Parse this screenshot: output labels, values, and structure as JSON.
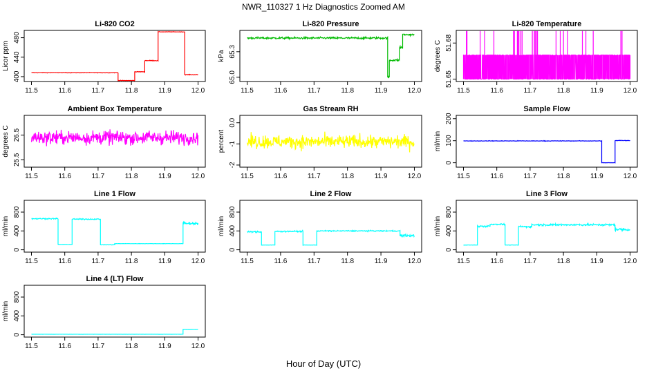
{
  "figure": {
    "title": "NWR_110327  1 Hz Diagnostics Zoomed AM",
    "xlabel": "Hour of Day (UTC)"
  },
  "chart_data": [
    {
      "type": "line",
      "title": "Li-820 CO2",
      "ylabel": "Licor ppm",
      "color": "#ff0000",
      "xlim": [
        11.5,
        12.0
      ],
      "ylim": [
        390,
        495
      ],
      "x_ticks": [
        "11.5",
        "11.6",
        "11.7",
        "11.8",
        "11.9",
        "12.0"
      ],
      "y_ticks": [
        "400",
        "440",
        "480"
      ],
      "segments": [
        [
          11.5,
          11.76,
          408,
          0.4
        ],
        [
          11.76,
          11.81,
          392,
          0.6
        ],
        [
          11.81,
          11.84,
          410,
          0.6
        ],
        [
          11.84,
          11.88,
          433,
          0.7
        ],
        [
          11.88,
          11.96,
          492,
          0.5
        ],
        [
          11.96,
          12.0,
          404,
          0.6
        ]
      ],
      "spikes": []
    },
    {
      "type": "line",
      "title": "Li-820 Pressure",
      "ylabel": "kPa",
      "color": "#00bb00",
      "xlim": [
        11.5,
        12.0
      ],
      "ylim": [
        64.95,
        65.55
      ],
      "x_ticks": [
        "11.5",
        "11.6",
        "11.7",
        "11.8",
        "11.9",
        "12.0"
      ],
      "y_ticks": [
        "65.0",
        "65.3"
      ],
      "segments": [
        [
          11.5,
          11.92,
          65.46,
          0.012
        ],
        [
          11.92,
          11.925,
          65.0,
          0.01
        ],
        [
          11.925,
          11.955,
          65.2,
          0.012
        ],
        [
          11.955,
          11.965,
          65.35,
          0.02
        ],
        [
          11.965,
          12.0,
          65.5,
          0.012
        ]
      ],
      "spikes": []
    },
    {
      "type": "line",
      "title": "Li-820 Temperature",
      "ylabel": "degrees C",
      "color": "#ff00ff",
      "xlim": [
        11.5,
        12.0
      ],
      "ylim": [
        51.648,
        51.6905
      ],
      "x_ticks": [
        "11.5",
        "11.6",
        "11.7",
        "11.8",
        "11.9",
        "12.0"
      ],
      "y_ticks": [
        "51.65",
        "51.68"
      ],
      "segments": [
        [
          11.5,
          12.0,
          51.66,
          0.0
        ]
      ],
      "pattern": "binary",
      "levels": [
        51.65,
        51.67
      ],
      "spike_level": 51.69
    },
    {
      "type": "line",
      "title": "Ambient Box Temperature",
      "ylabel": "degrees C",
      "color": "#ff00ff",
      "xlim": [
        11.5,
        12.0
      ],
      "ylim": [
        25.2,
        27.3
      ],
      "x_ticks": [
        "11.5",
        "11.6",
        "11.7",
        "11.8",
        "11.9",
        "12.0"
      ],
      "y_ticks": [
        "25.5",
        "26.5"
      ],
      "segments": [
        [
          11.5,
          12.0,
          26.4,
          0.28
        ]
      ],
      "spikes": []
    },
    {
      "type": "line",
      "title": "Gas Stream RH",
      "ylabel": "percent",
      "color": "#ffff00",
      "xlim": [
        11.5,
        12.0
      ],
      "ylim": [
        -2.1,
        0.35
      ],
      "x_ticks": [
        "11.5",
        "11.6",
        "11.7",
        "11.8",
        "11.9",
        "12.0"
      ],
      "y_ticks": [
        "-2",
        "-1",
        "0.0"
      ],
      "segments": [
        [
          11.5,
          12.0,
          -0.9,
          0.32
        ]
      ],
      "spikes": []
    },
    {
      "type": "line",
      "title": "Sample Flow",
      "ylabel": "ml/min",
      "color": "#0000ff",
      "xlim": [
        11.5,
        12.0
      ],
      "ylim": [
        -20,
        215
      ],
      "x_ticks": [
        "11.5",
        "11.6",
        "11.7",
        "11.8",
        "11.9",
        "12.0"
      ],
      "y_ticks": [
        "0",
        "100",
        "200"
      ],
      "segments": [
        [
          11.5,
          11.915,
          99,
          1.2
        ],
        [
          11.915,
          11.955,
          0,
          0.8
        ],
        [
          11.955,
          12.0,
          101,
          1.5
        ]
      ],
      "spikes": []
    },
    {
      "type": "line",
      "title": "Line 1 Flow",
      "ylabel": "ml/min",
      "color": "#00ffff",
      "xlim": [
        11.5,
        12.0
      ],
      "ylim": [
        -50,
        1050
      ],
      "x_ticks": [
        "11.5",
        "11.6",
        "11.7",
        "11.8",
        "11.9",
        "12.0"
      ],
      "y_ticks": [
        "0",
        "400",
        "800"
      ],
      "segments": [
        [
          11.5,
          11.58,
          660,
          12
        ],
        [
          11.58,
          11.622,
          110,
          3
        ],
        [
          11.622,
          11.707,
          650,
          12
        ],
        [
          11.707,
          11.75,
          105,
          3
        ],
        [
          11.75,
          11.955,
          130,
          3
        ],
        [
          11.955,
          12.0,
          560,
          30
        ]
      ],
      "spikes": []
    },
    {
      "type": "line",
      "title": "Line 2 Flow",
      "ylabel": "ml/min",
      "color": "#00ffff",
      "xlim": [
        11.5,
        12.0
      ],
      "ylim": [
        -50,
        1050
      ],
      "x_ticks": [
        "11.5",
        "11.6",
        "11.7",
        "11.8",
        "11.9",
        "12.0"
      ],
      "y_ticks": [
        "0",
        "400",
        "800"
      ],
      "segments": [
        [
          11.5,
          11.543,
          380,
          15
        ],
        [
          11.543,
          11.583,
          100,
          3
        ],
        [
          11.583,
          11.667,
          390,
          15
        ],
        [
          11.667,
          11.708,
          100,
          3
        ],
        [
          11.708,
          11.957,
          400,
          12
        ],
        [
          11.957,
          12.0,
          300,
          25
        ]
      ],
      "spikes": []
    },
    {
      "type": "line",
      "title": "Line 3 Flow",
      "ylabel": "ml/min",
      "color": "#00ffff",
      "xlim": [
        11.5,
        12.0
      ],
      "ylim": [
        -50,
        1050
      ],
      "x_ticks": [
        "11.5",
        "11.6",
        "11.7",
        "11.8",
        "11.9",
        "12.0"
      ],
      "y_ticks": [
        "0",
        "400",
        "800"
      ],
      "segments": [
        [
          11.5,
          11.542,
          100,
          3
        ],
        [
          11.542,
          11.58,
          500,
          20
        ],
        [
          11.58,
          11.625,
          540,
          15
        ],
        [
          11.625,
          11.665,
          100,
          3
        ],
        [
          11.665,
          11.705,
          490,
          20
        ],
        [
          11.705,
          11.955,
          530,
          20
        ],
        [
          11.955,
          12.0,
          430,
          30
        ]
      ],
      "spikes": []
    },
    {
      "type": "line",
      "title": "Line 4 (LT) Flow",
      "ylabel": "ml/min",
      "color": "#00ffff",
      "xlim": [
        11.5,
        12.0
      ],
      "ylim": [
        -50,
        1050
      ],
      "x_ticks": [
        "11.5",
        "11.6",
        "11.7",
        "11.8",
        "11.9",
        "12.0"
      ],
      "y_ticks": [
        "0",
        "400",
        "800"
      ],
      "segments": [
        [
          11.5,
          11.955,
          10,
          2
        ],
        [
          11.955,
          12.0,
          115,
          3
        ]
      ],
      "spikes": []
    }
  ]
}
